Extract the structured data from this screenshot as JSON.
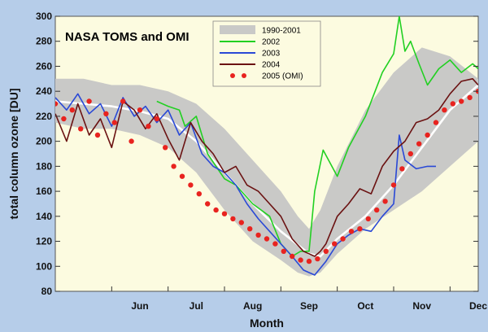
{
  "chart_data": {
    "type": "line",
    "title": "NASA TOMS and OMI",
    "xlabel": "Month",
    "ylabel": "total column ozone [DU]",
    "ylim": [
      80,
      300
    ],
    "yticks": [
      80,
      100,
      120,
      140,
      160,
      180,
      200,
      220,
      240,
      260,
      280,
      300
    ],
    "xticks": [
      "Jun",
      "Jul",
      "Aug",
      "Sep",
      "Oct",
      "Nov",
      "Dec"
    ],
    "xrange_months": [
      5.0,
      12.5
    ],
    "grid": false,
    "legend_position": "top-right",
    "colors": {
      "background": "#b6cde9",
      "plot_area": "#fcfbe0",
      "band": "#c9c9c7",
      "mean_1990_2001": "#ffffff",
      "s2002": "#22d022",
      "s2003": "#2a49d6",
      "s2004": "#6b1212",
      "s2005": "#e8231f"
    },
    "legend": [
      {
        "label": "1990-2001",
        "style": "band"
      },
      {
        "label": "2002",
        "style": "line"
      },
      {
        "label": "2003",
        "style": "line"
      },
      {
        "label": "2004",
        "style": "line"
      },
      {
        "label": "2005  (OMI)",
        "style": "dots"
      }
    ],
    "band_1990_2001": {
      "month": [
        5.0,
        5.5,
        6.0,
        6.5,
        7.0,
        7.5,
        8.0,
        8.5,
        9.0,
        9.3,
        9.5,
        9.7,
        10.0,
        10.5,
        11.0,
        11.5,
        12.0,
        12.5
      ],
      "low": [
        215,
        210,
        210,
        205,
        195,
        175,
        145,
        120,
        105,
        95,
        92,
        95,
        110,
        130,
        145,
        160,
        180,
        200
      ],
      "high": [
        250,
        250,
        245,
        245,
        240,
        230,
        210,
        185,
        160,
        140,
        130,
        145,
        180,
        225,
        255,
        275,
        268,
        250
      ]
    },
    "series": [
      {
        "name": "1990-2001",
        "month": [
          5.0,
          5.5,
          6.0,
          6.5,
          7.0,
          7.5,
          8.0,
          8.5,
          9.0,
          9.5,
          9.7,
          10.0,
          10.5,
          11.0,
          11.5,
          12.0,
          12.5
        ],
        "values": [
          232,
          230,
          228,
          224,
          218,
          200,
          175,
          150,
          128,
          110,
          108,
          122,
          140,
          165,
          195,
          225,
          245
        ]
      },
      {
        "name": "2002",
        "month": [
          6.8,
          7.0,
          7.2,
          7.3,
          7.5,
          7.7,
          8.0,
          8.2,
          8.5,
          8.8,
          9.0,
          9.2,
          9.35,
          9.5,
          9.6,
          9.75,
          10.0,
          10.2,
          10.5,
          10.8,
          11.0,
          11.1,
          11.2,
          11.3,
          11.45,
          11.6,
          11.8,
          12.0,
          12.2,
          12.4,
          12.5
        ],
        "values": [
          232,
          228,
          225,
          212,
          220,
          190,
          170,
          165,
          150,
          140,
          118,
          108,
          112,
          112,
          160,
          193,
          172,
          195,
          220,
          255,
          270,
          300,
          272,
          280,
          262,
          245,
          258,
          265,
          255,
          262,
          258
        ]
      },
      {
        "name": "2003",
        "month": [
          5.0,
          5.2,
          5.4,
          5.6,
          5.8,
          6.0,
          6.2,
          6.4,
          6.6,
          6.8,
          7.0,
          7.2,
          7.4,
          7.6,
          7.8,
          8.0,
          8.2,
          8.4,
          8.6,
          8.8,
          9.0,
          9.2,
          9.4,
          9.6,
          9.8,
          10.0,
          10.2,
          10.4,
          10.6,
          10.8,
          11.0,
          11.1,
          11.2,
          11.4,
          11.6,
          11.75
        ],
        "values": [
          235,
          225,
          238,
          222,
          230,
          212,
          235,
          220,
          228,
          215,
          225,
          205,
          215,
          190,
          180,
          175,
          165,
          150,
          138,
          128,
          118,
          108,
          97,
          93,
          104,
          118,
          125,
          130,
          128,
          140,
          150,
          205,
          185,
          178,
          180,
          180
        ]
      },
      {
        "name": "2004",
        "month": [
          5.0,
          5.2,
          5.4,
          5.6,
          5.8,
          6.0,
          6.2,
          6.4,
          6.6,
          6.8,
          7.0,
          7.2,
          7.4,
          7.6,
          7.8,
          8.0,
          8.2,
          8.4,
          8.6,
          8.8,
          9.0,
          9.2,
          9.4,
          9.6,
          9.7,
          9.8,
          10.0,
          10.2,
          10.4,
          10.6,
          10.8,
          11.0,
          11.2,
          11.4,
          11.6,
          11.8,
          12.0,
          12.2,
          12.4,
          12.5
        ],
        "values": [
          222,
          200,
          230,
          205,
          218,
          195,
          232,
          225,
          210,
          222,
          202,
          185,
          215,
          200,
          190,
          175,
          180,
          165,
          160,
          150,
          140,
          122,
          112,
          108,
          112,
          118,
          140,
          150,
          162,
          158,
          180,
          192,
          200,
          215,
          218,
          225,
          238,
          248,
          250,
          245
        ]
      },
      {
        "name": "2005  (OMI)",
        "month": [
          5.0,
          5.15,
          5.3,
          5.45,
          5.6,
          5.75,
          5.9,
          6.05,
          6.2,
          6.35,
          6.5,
          6.65,
          6.8,
          6.95,
          7.1,
          7.25,
          7.4,
          7.55,
          7.7,
          7.85,
          8.0,
          8.15,
          8.3,
          8.45,
          8.6,
          8.75,
          8.9,
          9.05,
          9.2,
          9.35,
          9.5,
          9.65,
          9.8,
          9.95,
          10.1,
          10.25,
          10.4,
          10.55,
          10.7,
          10.85,
          11.0,
          11.15,
          11.3,
          11.45,
          11.6,
          11.75,
          11.9,
          12.05,
          12.2,
          12.35,
          12.5
        ],
        "values": [
          230,
          218,
          225,
          210,
          232,
          205,
          222,
          215,
          232,
          200,
          225,
          212,
          218,
          195,
          180,
          172,
          165,
          158,
          150,
          145,
          142,
          138,
          135,
          130,
          125,
          122,
          118,
          112,
          108,
          105,
          104,
          106,
          112,
          118,
          122,
          128,
          130,
          138,
          145,
          152,
          165,
          178,
          190,
          198,
          205,
          215,
          225,
          230,
          232,
          235,
          240
        ]
      }
    ]
  }
}
